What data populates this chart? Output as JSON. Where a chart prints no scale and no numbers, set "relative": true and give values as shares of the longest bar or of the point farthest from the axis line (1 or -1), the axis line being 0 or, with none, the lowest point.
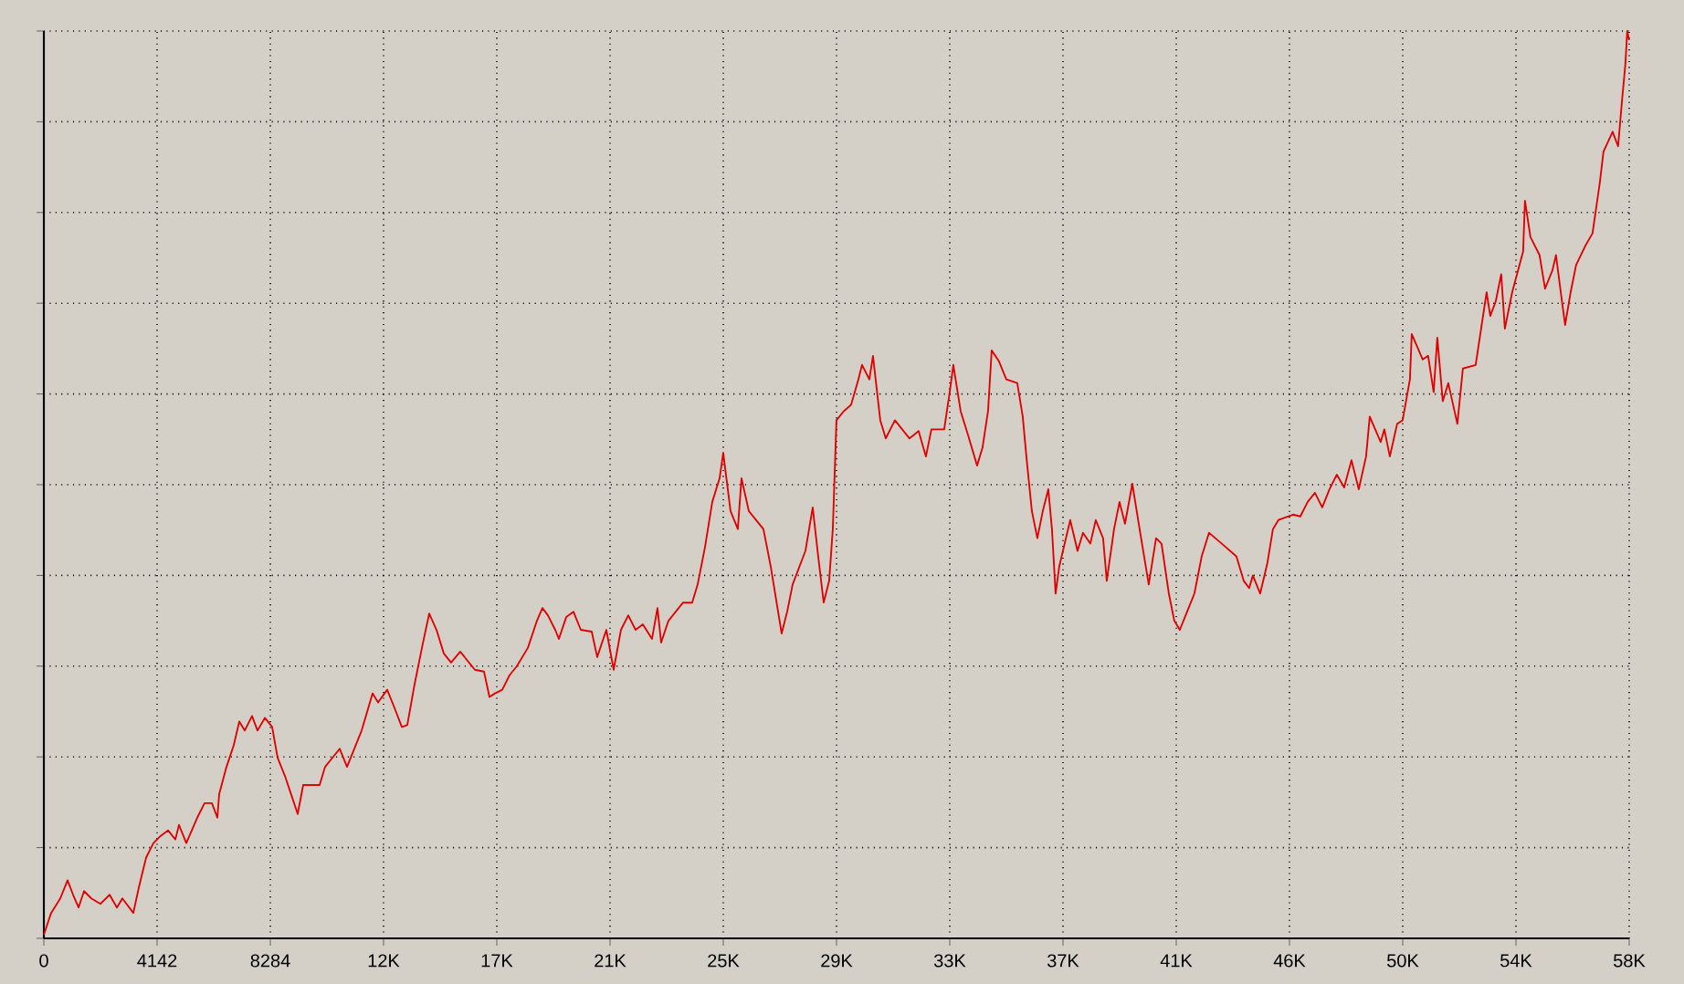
{
  "chart_data": {
    "type": "line",
    "relative": true,
    "grid": true,
    "color": "#e00000",
    "xlim": [
      0,
      57988
    ],
    "xticks": [
      0,
      4142,
      8284,
      {
        "value": 12426,
        "label": "12K"
      },
      {
        "value": 16568,
        "label": "17K"
      },
      {
        "value": 20710,
        "label": "21K"
      },
      {
        "value": 24852,
        "label": "25K"
      },
      {
        "value": 28994,
        "label": "29K"
      },
      {
        "value": 33136,
        "label": "33K"
      },
      {
        "value": 37278,
        "label": "37K"
      },
      {
        "value": 41420,
        "label": "41K"
      },
      {
        "value": 45562,
        "label": "46K"
      },
      {
        "value": 49704,
        "label": "50K"
      },
      {
        "value": 53846,
        "label": "54K"
      },
      {
        "value": 57988,
        "label": "58K"
      }
    ],
    "x": [
      0,
      267,
      601,
      868,
      1069,
      1269,
      1470,
      1737,
      2071,
      2405,
      2672,
      2872,
      3273,
      3474,
      3741,
      4008,
      4275,
      4542,
      4810,
      4943,
      5210,
      5611,
      5878,
      6146,
      6346,
      6413,
      6680,
      6947,
      7148,
      7348,
      7615,
      7816,
      8083,
      8350,
      8550,
      8818,
      9085,
      9285,
      9486,
      10087,
      10287,
      10822,
      11089,
      11623,
      12024,
      12224,
      12558,
      12826,
      13093,
      13293,
      13560,
      13828,
      14095,
      14362,
      14629,
      14896,
      15230,
      15498,
      15765,
      16099,
      16299,
      16500,
      16767,
      17034,
      17301,
      17702,
      18036,
      18236,
      18437,
      18704,
      18838,
      19105,
      19372,
      19639,
      20040,
      20240,
      20574,
      20842,
      21109,
      21376,
      21643,
      21910,
      22244,
      22445,
      22578,
      22846,
      23380,
      23714,
      23914,
      24182,
      24449,
      24716,
      24850,
      25117,
      25384,
      25518,
      25785,
      26319,
      26586,
      26987,
      27188,
      27388,
      27856,
      28123,
      28323,
      28524,
      28724,
      28858,
      28991,
      29258,
      29526,
      29793,
      29926,
      30194,
      30327,
      30594,
      30795,
      31129,
      31663,
      31997,
      32264,
      32465,
      32932,
      33133,
      33266,
      33534,
      33801,
      34135,
      34335,
      34536,
      34669,
      34936,
      35204,
      35604,
      35805,
      35938,
      36139,
      36339,
      36540,
      36740,
      36874,
      37007,
      37141,
      37542,
      37809,
      38009,
      38276,
      38477,
      38744,
      38878,
      39145,
      39345,
      39546,
      39813,
      40080,
      40414,
      40681,
      40882,
      41149,
      41349,
      41550,
      41817,
      42084,
      42351,
      42618,
      43086,
      43620,
      43888,
      44088,
      44222,
      44489,
      44756,
      44956,
      45157,
      45691,
      45958,
      46226,
      46493,
      46760,
      47027,
      47294,
      47562,
      47829,
      48096,
      48363,
      48497,
      48898,
      49032,
      49232,
      49499,
      49700,
      49967,
      50034,
      50234,
      50435,
      50634,
      50835,
      50968,
      51169,
      51369,
      51703,
      51904,
      52371,
      52572,
      52772,
      52906,
      53106,
      53306,
      53440,
      53707,
      54108,
      54175,
      54375,
      54709,
      54910,
      55177,
      55310,
      55511,
      55644,
      55845,
      56045,
      56379,
      56646,
      56914,
      57047,
      57381,
      57582,
      57715,
      57849,
      57916,
      57983
    ],
    "values": [
      0.004,
      0.028,
      0.044,
      0.064,
      0.048,
      0.034,
      0.052,
      0.044,
      0.038,
      0.048,
      0.034,
      0.044,
      0.028,
      0.056,
      0.089,
      0.105,
      0.113,
      0.119,
      0.109,
      0.125,
      0.105,
      0.133,
      0.149,
      0.149,
      0.133,
      0.159,
      0.189,
      0.213,
      0.239,
      0.229,
      0.245,
      0.229,
      0.243,
      0.233,
      0.199,
      0.179,
      0.155,
      0.137,
      0.169,
      0.169,
      0.189,
      0.209,
      0.189,
      0.229,
      0.27,
      0.26,
      0.274,
      0.254,
      0.233,
      0.235,
      0.28,
      0.32,
      0.358,
      0.34,
      0.314,
      0.304,
      0.316,
      0.306,
      0.296,
      0.294,
      0.266,
      0.27,
      0.274,
      0.29,
      0.3,
      0.32,
      0.35,
      0.364,
      0.356,
      0.34,
      0.33,
      0.354,
      0.36,
      0.34,
      0.338,
      0.31,
      0.34,
      0.296,
      0.34,
      0.356,
      0.34,
      0.346,
      0.33,
      0.364,
      0.326,
      0.35,
      0.37,
      0.37,
      0.39,
      0.431,
      0.481,
      0.507,
      0.535,
      0.471,
      0.451,
      0.507,
      0.471,
      0.451,
      0.41,
      0.336,
      0.36,
      0.39,
      0.427,
      0.475,
      0.421,
      0.37,
      0.394,
      0.451,
      0.571,
      0.581,
      0.588,
      0.616,
      0.632,
      0.616,
      0.642,
      0.571,
      0.551,
      0.571,
      0.551,
      0.559,
      0.531,
      0.561,
      0.561,
      0.602,
      0.632,
      0.581,
      0.555,
      0.521,
      0.541,
      0.581,
      0.648,
      0.636,
      0.616,
      0.612,
      0.575,
      0.531,
      0.471,
      0.441,
      0.471,
      0.495,
      0.451,
      0.38,
      0.41,
      0.461,
      0.427,
      0.447,
      0.435,
      0.461,
      0.441,
      0.394,
      0.451,
      0.481,
      0.457,
      0.501,
      0.451,
      0.39,
      0.441,
      0.435,
      0.38,
      0.35,
      0.34,
      0.36,
      0.38,
      0.421,
      0.447,
      0.435,
      0.421,
      0.394,
      0.386,
      0.4,
      0.38,
      0.414,
      0.451,
      0.461,
      0.467,
      0.465,
      0.481,
      0.491,
      0.475,
      0.495,
      0.511,
      0.497,
      0.527,
      0.495,
      0.531,
      0.575,
      0.547,
      0.561,
      0.531,
      0.567,
      0.571,
      0.616,
      0.666,
      0.652,
      0.638,
      0.642,
      0.602,
      0.662,
      0.592,
      0.612,
      0.567,
      0.628,
      0.632,
      0.672,
      0.712,
      0.686,
      0.702,
      0.732,
      0.672,
      0.712,
      0.757,
      0.813,
      0.773,
      0.753,
      0.716,
      0.736,
      0.753,
      0.706,
      0.676,
      0.712,
      0.742,
      0.763,
      0.777,
      0.833,
      0.867,
      0.889,
      0.873,
      0.92,
      0.964,
      1.0,
      0.99
    ]
  }
}
